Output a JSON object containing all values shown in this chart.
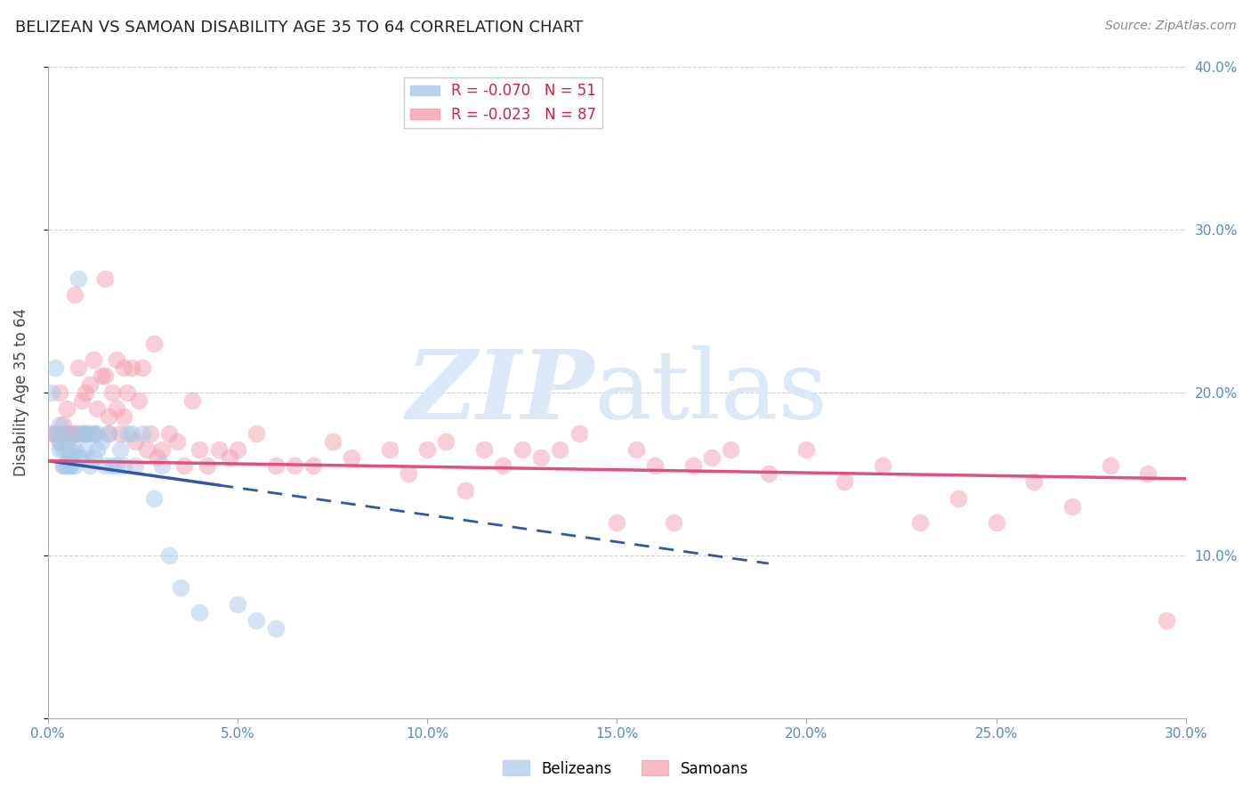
{
  "title": "BELIZEAN VS SAMOAN DISABILITY AGE 35 TO 64 CORRELATION CHART",
  "source": "Source: ZipAtlas.com",
  "ylabel": "Disability Age 35 to 64",
  "xlim": [
    0.0,
    0.3
  ],
  "ylim": [
    0.0,
    0.4
  ],
  "xticks": [
    0.0,
    0.05,
    0.1,
    0.15,
    0.2,
    0.25,
    0.3
  ],
  "yticks": [
    0.0,
    0.1,
    0.2,
    0.3,
    0.4
  ],
  "R_belizean": -0.07,
  "N_belizean": 51,
  "R_samoan": -0.023,
  "N_samoan": 87,
  "color_belizean": "#a8c8e8",
  "color_samoan": "#f4a0b0",
  "color_trendline_belizean": "#3355aa",
  "color_trendline_samoan": "#e0507a",
  "background_color": "#ffffff",
  "grid_color": "#cccccc",
  "belizean_x": [
    0.001,
    0.002,
    0.002,
    0.003,
    0.003,
    0.003,
    0.004,
    0.004,
    0.004,
    0.005,
    0.005,
    0.005,
    0.005,
    0.006,
    0.006,
    0.006,
    0.007,
    0.007,
    0.007,
    0.008,
    0.008,
    0.009,
    0.009,
    0.01,
    0.01,
    0.01,
    0.011,
    0.011,
    0.012,
    0.012,
    0.013,
    0.013,
    0.014,
    0.015,
    0.016,
    0.017,
    0.018,
    0.019,
    0.02,
    0.021,
    0.022,
    0.023,
    0.025,
    0.028,
    0.03,
    0.032,
    0.035,
    0.04,
    0.05,
    0.055,
    0.06
  ],
  "belizean_y": [
    0.2,
    0.215,
    0.175,
    0.17,
    0.18,
    0.165,
    0.155,
    0.165,
    0.175,
    0.155,
    0.165,
    0.155,
    0.17,
    0.155,
    0.16,
    0.155,
    0.155,
    0.165,
    0.175,
    0.16,
    0.27,
    0.175,
    0.16,
    0.165,
    0.175,
    0.175,
    0.155,
    0.175,
    0.16,
    0.175,
    0.165,
    0.175,
    0.17,
    0.155,
    0.175,
    0.155,
    0.155,
    0.165,
    0.155,
    0.175,
    0.175,
    0.155,
    0.175,
    0.135,
    0.155,
    0.1,
    0.08,
    0.065,
    0.07,
    0.06,
    0.055
  ],
  "samoan_x": [
    0.001,
    0.002,
    0.003,
    0.003,
    0.004,
    0.004,
    0.005,
    0.005,
    0.006,
    0.006,
    0.007,
    0.007,
    0.008,
    0.008,
    0.009,
    0.01,
    0.01,
    0.011,
    0.012,
    0.012,
    0.013,
    0.014,
    0.015,
    0.015,
    0.016,
    0.016,
    0.017,
    0.018,
    0.018,
    0.019,
    0.02,
    0.02,
    0.021,
    0.022,
    0.023,
    0.024,
    0.025,
    0.026,
    0.027,
    0.028,
    0.029,
    0.03,
    0.032,
    0.034,
    0.036,
    0.038,
    0.04,
    0.042,
    0.045,
    0.048,
    0.05,
    0.055,
    0.06,
    0.065,
    0.07,
    0.075,
    0.08,
    0.09,
    0.095,
    0.1,
    0.105,
    0.11,
    0.115,
    0.12,
    0.125,
    0.13,
    0.135,
    0.14,
    0.15,
    0.155,
    0.16,
    0.165,
    0.17,
    0.175,
    0.18,
    0.19,
    0.2,
    0.21,
    0.22,
    0.23,
    0.24,
    0.25,
    0.26,
    0.27,
    0.28,
    0.29,
    0.295
  ],
  "samoan_y": [
    0.175,
    0.175,
    0.17,
    0.2,
    0.155,
    0.18,
    0.175,
    0.19,
    0.165,
    0.175,
    0.175,
    0.26,
    0.175,
    0.215,
    0.195,
    0.2,
    0.175,
    0.205,
    0.175,
    0.22,
    0.19,
    0.21,
    0.21,
    0.27,
    0.175,
    0.185,
    0.2,
    0.19,
    0.22,
    0.175,
    0.215,
    0.185,
    0.2,
    0.215,
    0.17,
    0.195,
    0.215,
    0.165,
    0.175,
    0.23,
    0.16,
    0.165,
    0.175,
    0.17,
    0.155,
    0.195,
    0.165,
    0.155,
    0.165,
    0.16,
    0.165,
    0.175,
    0.155,
    0.155,
    0.155,
    0.17,
    0.16,
    0.165,
    0.15,
    0.165,
    0.17,
    0.14,
    0.165,
    0.155,
    0.165,
    0.16,
    0.165,
    0.175,
    0.12,
    0.165,
    0.155,
    0.12,
    0.155,
    0.16,
    0.165,
    0.15,
    0.165,
    0.145,
    0.155,
    0.12,
    0.135,
    0.12,
    0.145,
    0.13,
    0.155,
    0.15,
    0.06
  ],
  "trend_belizean_x0": 0.0,
  "trend_belizean_x_solid_end": 0.045,
  "trend_belizean_x_dashed_end": 0.19,
  "trend_belizean_y0": 0.158,
  "trend_belizean_y_end": 0.095,
  "trend_samoan_x0": 0.0,
  "trend_samoan_x_end": 0.3,
  "trend_samoan_y0": 0.158,
  "trend_samoan_y_end": 0.147
}
